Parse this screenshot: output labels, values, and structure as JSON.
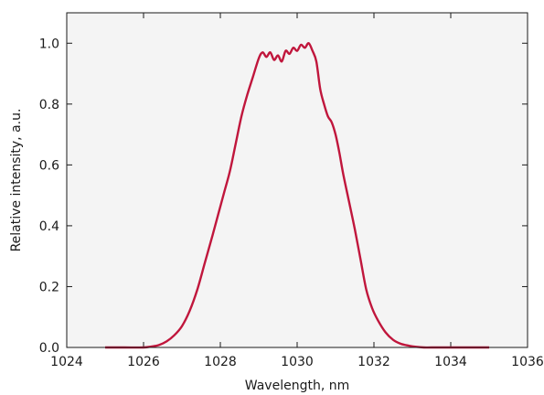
{
  "chart_data": {
    "type": "line",
    "title": "",
    "xlabel": "Wavelength, nm",
    "ylabel": "Relative intensity, a.u.",
    "xlim": [
      1024,
      1036
    ],
    "ylim": [
      0,
      1.1
    ],
    "xticks": [
      1024,
      1026,
      1028,
      1030,
      1032,
      1034,
      1036
    ],
    "xtick_labels": [
      "1024",
      "1026",
      "1028",
      "1030",
      "1032",
      "1034",
      "1036"
    ],
    "yticks": [
      0,
      0.2,
      0.4,
      0.6,
      0.8,
      1.0
    ],
    "ytick_labels": [
      "0.0",
      "0.2",
      "0.4",
      "0.6",
      "0.8",
      "1.0"
    ],
    "grid": false,
    "legend": false,
    "plot_background": "#f4f4f4",
    "series": [
      {
        "color": "#c0163c",
        "x": [
          1025.0,
          1025.5,
          1026.0,
          1026.2,
          1026.4,
          1026.6,
          1026.8,
          1027.0,
          1027.2,
          1027.4,
          1027.6,
          1027.8,
          1027.95,
          1028.1,
          1028.25,
          1028.4,
          1028.55,
          1028.7,
          1028.85,
          1029.0,
          1029.1,
          1029.2,
          1029.3,
          1029.4,
          1029.5,
          1029.6,
          1029.7,
          1029.8,
          1029.9,
          1030.0,
          1030.1,
          1030.2,
          1030.3,
          1030.4,
          1030.5,
          1030.6,
          1030.7,
          1030.8,
          1030.9,
          1031.0,
          1031.1,
          1031.2,
          1031.35,
          1031.5,
          1031.65,
          1031.8,
          1031.95,
          1032.1,
          1032.3,
          1032.5,
          1032.7,
          1032.9,
          1033.1,
          1033.3,
          1033.5,
          1034.0,
          1035.0
        ],
        "y": [
          0.0,
          0.0,
          0.0,
          0.003,
          0.008,
          0.02,
          0.04,
          0.07,
          0.12,
          0.19,
          0.28,
          0.37,
          0.44,
          0.51,
          0.58,
          0.67,
          0.76,
          0.83,
          0.89,
          0.95,
          0.97,
          0.955,
          0.97,
          0.945,
          0.96,
          0.94,
          0.975,
          0.965,
          0.985,
          0.975,
          0.995,
          0.985,
          1.0,
          0.975,
          0.94,
          0.85,
          0.8,
          0.76,
          0.74,
          0.7,
          0.64,
          0.57,
          0.48,
          0.39,
          0.29,
          0.19,
          0.13,
          0.09,
          0.05,
          0.025,
          0.012,
          0.006,
          0.002,
          0.0,
          0.0,
          0.0,
          0.0
        ]
      }
    ]
  }
}
